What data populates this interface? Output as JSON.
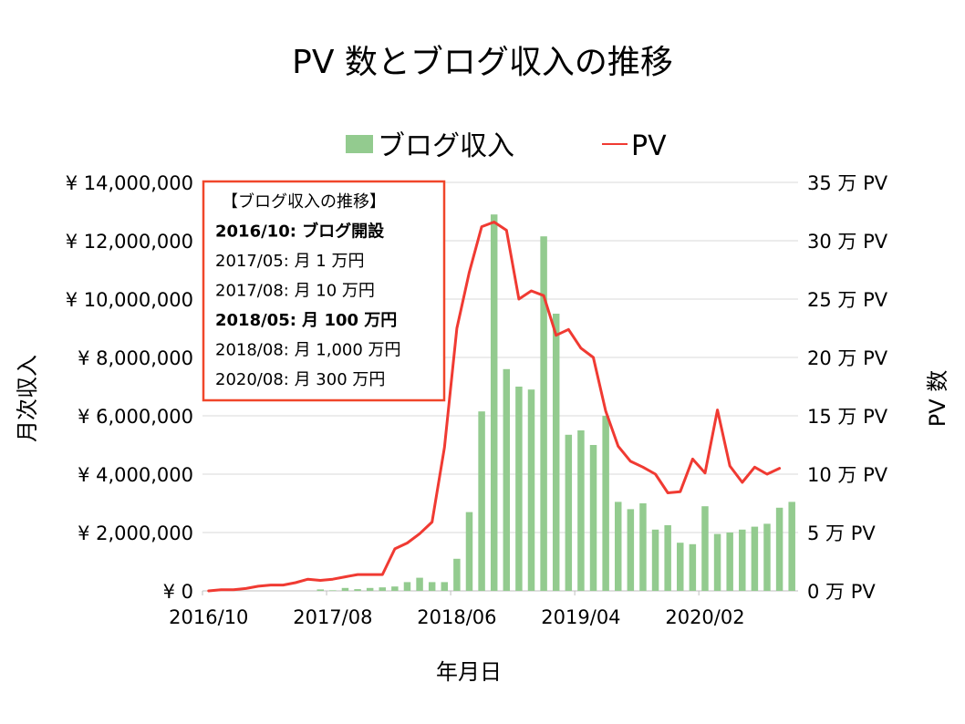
{
  "chart_data": {
    "type": "bar+line",
    "title": "PV 数とブログ収入の推移",
    "xlabel": "年月日",
    "ylabel_left": "月次収入",
    "ylabel_right": "PV 数",
    "ylim_left": [
      0,
      14000000
    ],
    "ylim_right": [
      0,
      35
    ],
    "yticks_left": [
      "¥ 0",
      "¥ 2,000,000",
      "¥ 4,000,000",
      "¥ 6,000,000",
      "¥ 8,000,000",
      "¥ 10,000,000",
      "¥ 12,000,000",
      "¥ 14,000,000"
    ],
    "yticks_right": [
      "0 万 PV",
      "5 万 PV",
      "10 万 PV",
      "15 万 PV",
      "20 万 PV",
      "25 万 PV",
      "30 万 PV",
      "35 万 PV"
    ],
    "xticks": [
      "2016/10",
      "2017/08",
      "2018/06",
      "2019/04",
      "2020/02"
    ],
    "xtick_indices": [
      0,
      10,
      20,
      30,
      40
    ],
    "legend_position": "top",
    "grid": true,
    "series": [
      {
        "name": "ブログ収入",
        "kind": "bar",
        "axis": "left",
        "color": "#93cb8f",
        "values": [
          0,
          0,
          0,
          0,
          0,
          0,
          0,
          0,
          0,
          50000,
          20000,
          100000,
          60000,
          100000,
          120000,
          150000,
          300000,
          450000,
          300000,
          300000,
          1100000,
          2700000,
          6150000,
          12900000,
          7600000,
          7000000,
          6900000,
          12150000,
          9500000,
          5350000,
          5500000,
          5000000,
          6000000,
          3050000,
          2800000,
          3000000,
          2100000,
          2250000,
          1650000,
          1600000,
          2900000,
          1950000,
          2000000,
          2100000,
          2200000,
          2300000,
          2850000,
          3050000
        ]
      },
      {
        "name": "PV",
        "kind": "line",
        "axis": "right",
        "color": "#f03a32",
        "values": [
          0,
          0.1,
          0.1,
          0.2,
          0.4,
          0.5,
          0.5,
          0.7,
          1.0,
          0.9,
          1.0,
          1.2,
          1.4,
          1.4,
          1.4,
          3.6,
          4.1,
          4.9,
          5.9,
          12.3,
          22.5,
          27.3,
          31.2,
          31.6,
          30.9,
          25.0,
          25.7,
          25.3,
          21.9,
          22.4,
          20.8,
          20.0,
          15.4,
          12.4,
          11.1,
          10.6,
          10.0,
          8.4,
          8.5,
          11.3,
          10.1,
          15.5,
          10.7,
          9.3,
          10.6,
          10.0,
          10.5
        ]
      }
    ],
    "annotation": {
      "lines": [
        {
          "text": "【ブログ収入の推移】",
          "bold": false
        },
        {
          "text": "2016/10: ブログ開設",
          "bold": true
        },
        {
          "text": "2017/05: 月 1 万円",
          "bold": false
        },
        {
          "text": "2017/08: 月 10 万円",
          "bold": false
        },
        {
          "text": "2018/05: 月 100 万円",
          "bold": true
        },
        {
          "text": "2018/08: 月 1,000 万円",
          "bold": false
        },
        {
          "text": "2020/08: 月 300 万円",
          "bold": false
        }
      ],
      "border_color": "#f0462a"
    }
  }
}
